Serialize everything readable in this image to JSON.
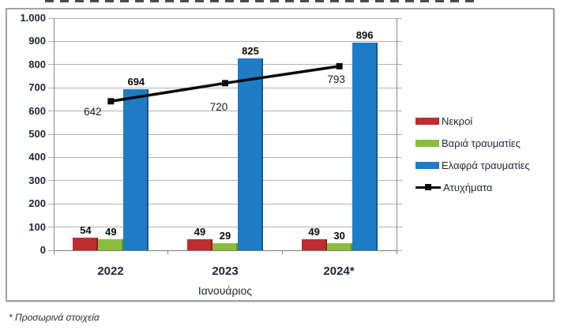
{
  "chart_data": {
    "type": "bar-line-combo",
    "categories": [
      "2022",
      "2023",
      "2024*"
    ],
    "xlabel": "Ιανουάριος",
    "ylim": [
      0,
      1000
    ],
    "ytick_step": 100,
    "ytick_labels": [
      "0",
      "100",
      "200",
      "300",
      "400",
      "500",
      "600",
      "700",
      "800",
      "900",
      "1.000"
    ],
    "grid": true,
    "legend_position": "right",
    "series": [
      {
        "name": "Νεκροί",
        "type": "bar",
        "color": "#be2d30",
        "edge": "#8c1f22",
        "values": [
          54,
          49,
          49
        ]
      },
      {
        "name": "Βαριά τραυματίες",
        "type": "bar",
        "color": "#8abd3e",
        "edge": "#679427",
        "values": [
          49,
          29,
          30
        ]
      },
      {
        "name": "Ελαφρά τραυματίες",
        "type": "bar",
        "color": "#1e7cc5",
        "edge": "#13588c",
        "values": [
          694,
          825,
          896
        ]
      },
      {
        "name": "Ατυχήματα",
        "type": "line",
        "color": "#0a0a0a",
        "values": [
          642,
          720,
          793
        ]
      }
    ],
    "footnote": "* Προσωρινά στοιχεία"
  }
}
